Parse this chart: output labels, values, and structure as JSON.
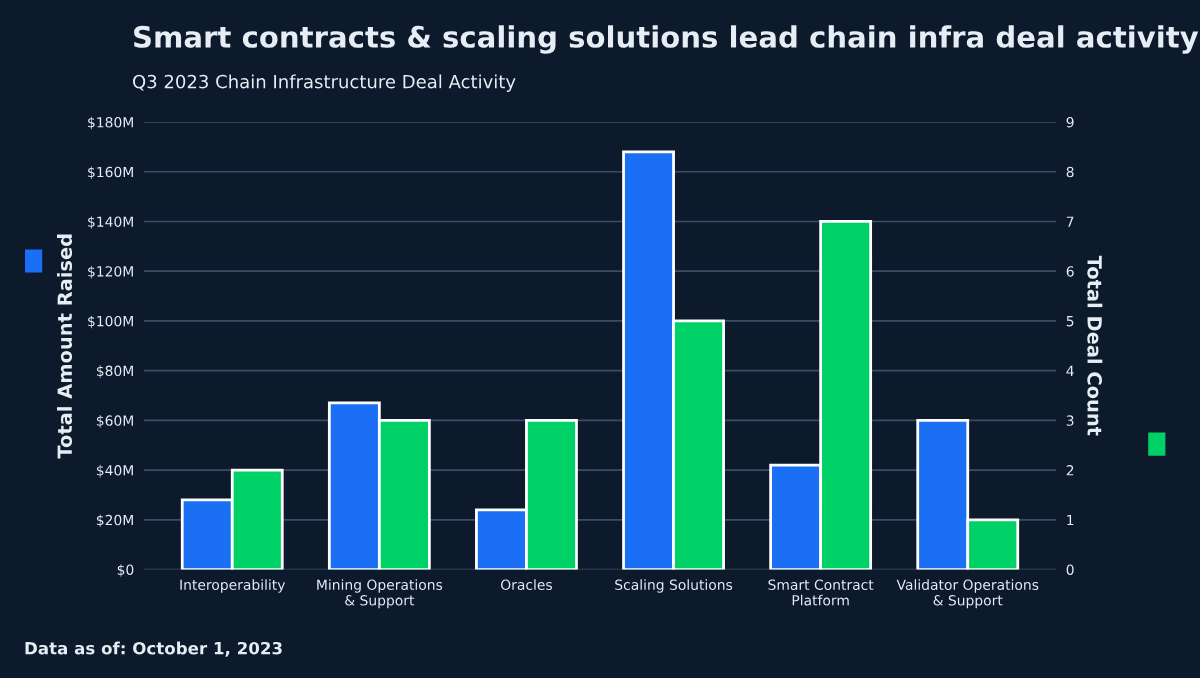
{
  "chart_data": {
    "type": "bar",
    "title": "Smart contracts & scaling solutions lead chain infra deal activity",
    "subtitle": "Q3 2023 Chain Infrastructure Deal Activity",
    "ylabel": "Total Amount Raised",
    "y2label": "Total Deal Count",
    "categories": [
      "Interoperability",
      "Mining Operations\n& Support",
      "Oracles",
      "Scaling Solutions",
      "Smart Contract\nPlatform",
      "Validator Operations\n& Support"
    ],
    "series": [
      {
        "color": "#1a6ff5",
        "values": [
          28,
          67,
          24,
          168,
          42,
          60
        ]
      },
      {
        "color": "#00d166",
        "axis": "y2",
        "values": [
          2,
          3,
          3,
          5,
          7,
          1
        ]
      }
    ],
    "ylim": [
      0,
      180
    ],
    "yticks": [
      {
        "value": 0,
        "label": "$0"
      },
      {
        "value": 20,
        "label": "$20M"
      },
      {
        "value": 40,
        "label": "$40M"
      },
      {
        "value": 60,
        "label": "$60M"
      },
      {
        "value": 80,
        "label": "$80M"
      },
      {
        "value": 100,
        "label": "$100M"
      },
      {
        "value": 120,
        "label": "$120M"
      },
      {
        "value": 140,
        "label": "$140M"
      },
      {
        "value": 160,
        "label": "$160M"
      },
      {
        "value": 180,
        "label": "$180M"
      }
    ],
    "y2lim": [
      0,
      9
    ],
    "y2ticks": [
      0,
      1,
      2,
      3,
      4,
      5,
      6,
      7,
      8,
      9
    ],
    "grid": "y",
    "annotations": [
      "Data as of: October 1, 2023"
    ]
  }
}
